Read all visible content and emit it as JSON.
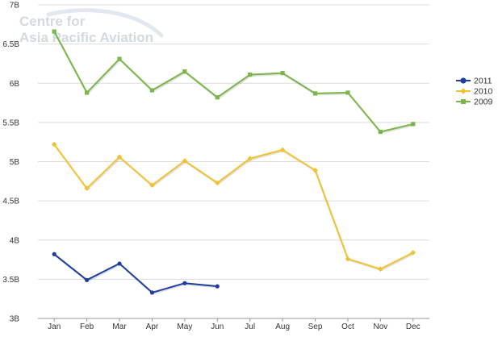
{
  "watermark": {
    "line1": "Centre for",
    "line2": "Asia Pacific Aviation"
  },
  "chart_data": {
    "type": "line",
    "title": "",
    "xlabel": "",
    "ylabel": "",
    "categories": [
      "Jan",
      "Feb",
      "Mar",
      "Apr",
      "May",
      "Jun",
      "Jul",
      "Aug",
      "Sep",
      "Oct",
      "Nov",
      "Dec"
    ],
    "y_ticks": [
      "3B",
      "3.5B",
      "4B",
      "4.5B",
      "5B",
      "5.5B",
      "6B",
      "6.5B",
      "7B"
    ],
    "ylim": [
      3,
      7
    ],
    "y_unit": "B",
    "grid": "horizontal",
    "legend": "right",
    "series": [
      {
        "name": "2011",
        "color": "#1f3f9c",
        "marker": "circle",
        "values": [
          3.82,
          3.49,
          3.7,
          3.33,
          3.45,
          3.41,
          null,
          null,
          null,
          null,
          null,
          null
        ]
      },
      {
        "name": "2010",
        "color": "#f1c232",
        "marker": "diamond",
        "values": [
          5.22,
          4.66,
          5.06,
          4.7,
          5.01,
          4.73,
          5.04,
          5.15,
          4.89,
          3.76,
          3.63,
          3.84
        ]
      },
      {
        "name": "2009",
        "color": "#7ab648",
        "marker": "square",
        "values": [
          6.66,
          5.88,
          6.31,
          5.91,
          6.15,
          5.82,
          6.11,
          6.13,
          5.87,
          5.88,
          5.38,
          5.48
        ]
      }
    ]
  }
}
